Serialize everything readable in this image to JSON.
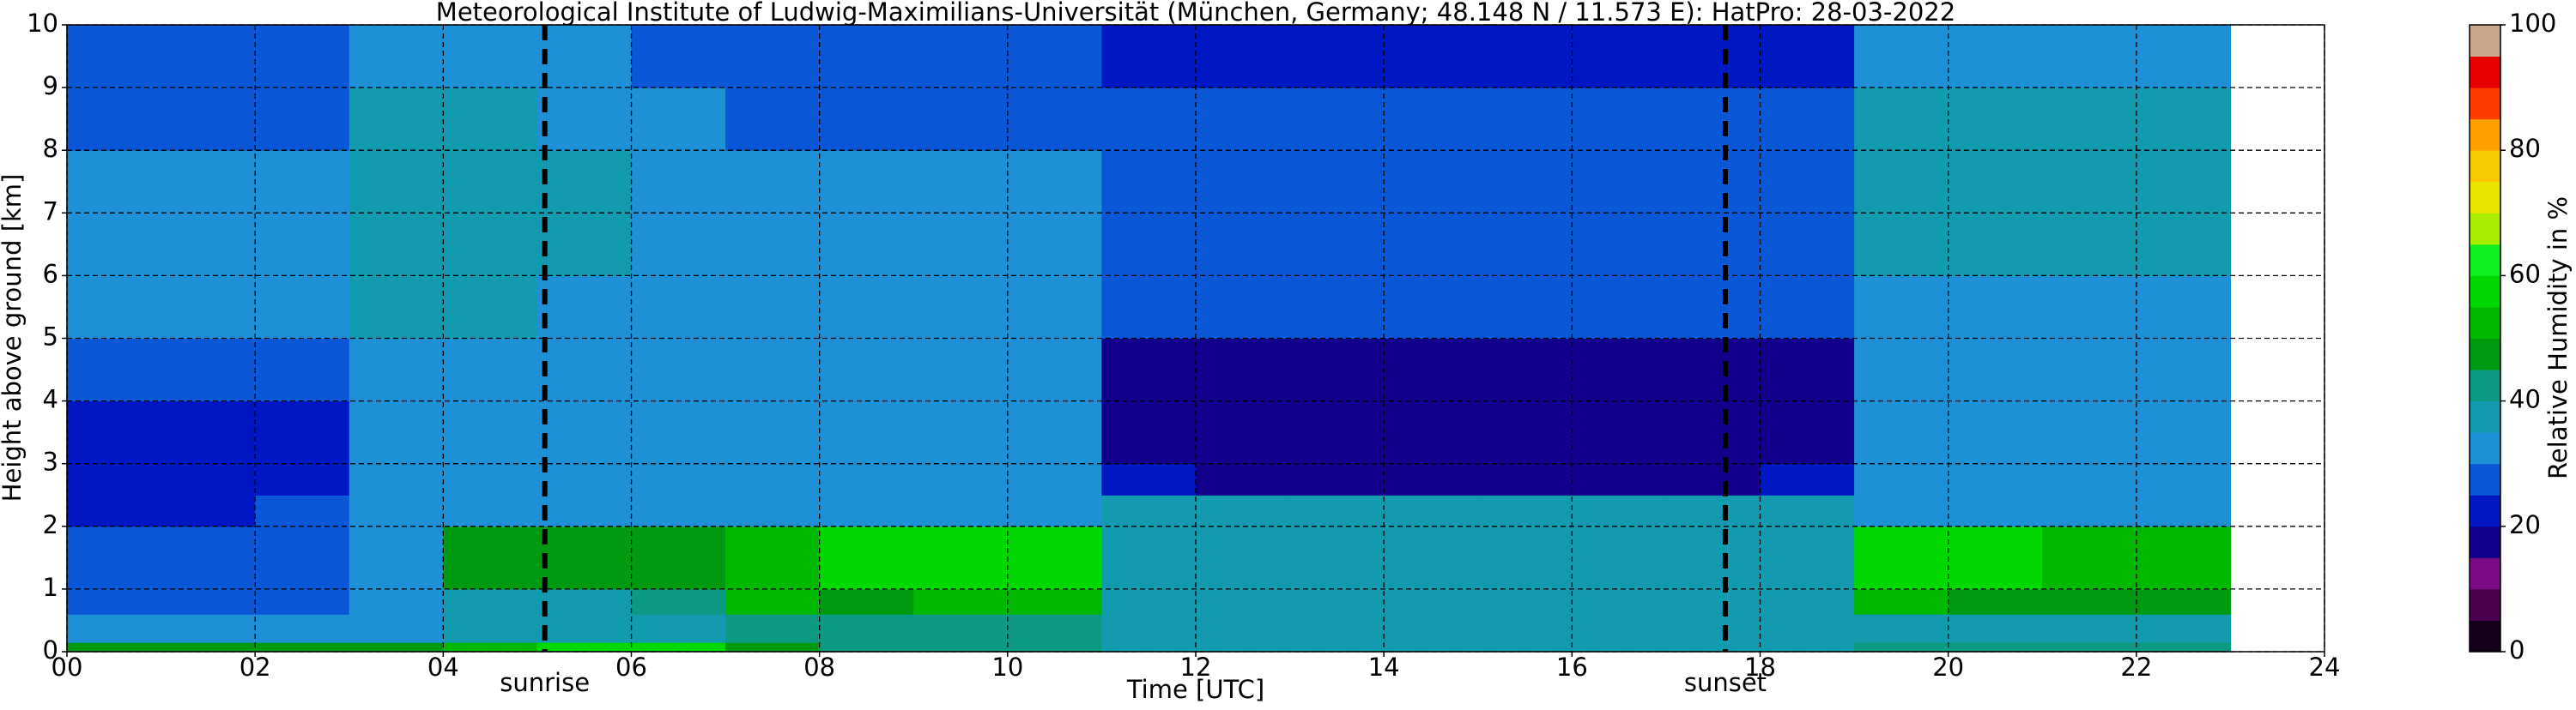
{
  "chart_data": {
    "type": "heatmap",
    "title": "Meteorological Institute of Ludwig-Maximilians-Universität (München, Germany; 48.148 N / 11.573 E):    HatPro: 28-03-2022",
    "x_label": "Time [UTC]",
    "y_label": "Height above ground [km]",
    "colorbar_label": "Relative Humidity in %",
    "xlim": [
      0,
      24
    ],
    "xticks": [
      {
        "value": 0,
        "label": "00"
      },
      {
        "value": 2,
        "label": "02"
      },
      {
        "value": 4,
        "label": "04"
      },
      {
        "value": 6,
        "label": "06"
      },
      {
        "value": 8,
        "label": "08"
      },
      10,
      12,
      14,
      16,
      18,
      20,
      22,
      24
    ],
    "ylim": [
      0,
      10
    ],
    "yticks": [
      0,
      1,
      2,
      3,
      4,
      5,
      6,
      7,
      8,
      9,
      10
    ],
    "grid": true,
    "x_edges": [
      0,
      1,
      2,
      3,
      4,
      5,
      6,
      7,
      8,
      9,
      10,
      11,
      12,
      13,
      14,
      15,
      16,
      17,
      18,
      19,
      20,
      21,
      22,
      23
    ],
    "y_edges": [
      0,
      0.15,
      0.6,
      1,
      2,
      2.5,
      3,
      4,
      5,
      6,
      7,
      8,
      9,
      10
    ],
    "z": [
      [
        45,
        45,
        45,
        48,
        52,
        55,
        55,
        45,
        42,
        42,
        42,
        38,
        38,
        38,
        38,
        38,
        38,
        38,
        38,
        40,
        40,
        40,
        42
      ],
      [
        30,
        30,
        30,
        33,
        35,
        35,
        38,
        40,
        40,
        40,
        40,
        38,
        38,
        38,
        38,
        38,
        38,
        38,
        38,
        38,
        38,
        38,
        38
      ],
      [
        28,
        28,
        28,
        32,
        35,
        35,
        40,
        50,
        48,
        52,
        52,
        38,
        38,
        38,
        38,
        38,
        38,
        38,
        38,
        50,
        45,
        45,
        45
      ],
      [
        27,
        27,
        27,
        33,
        45,
        45,
        45,
        52,
        55,
        55,
        55,
        38,
        38,
        38,
        38,
        38,
        38,
        38,
        38,
        55,
        55,
        52,
        52
      ],
      [
        24,
        24,
        26,
        30,
        32,
        32,
        32,
        33,
        33,
        33,
        33,
        36,
        36,
        36,
        36,
        36,
        36,
        36,
        36,
        32,
        32,
        32,
        32
      ],
      [
        22,
        22,
        24,
        30,
        30,
        30,
        30,
        30,
        30,
        30,
        30,
        20,
        18,
        18,
        18,
        18,
        18,
        18,
        20,
        30,
        30,
        30,
        30
      ],
      [
        21,
        21,
        23,
        30,
        30,
        30,
        30,
        30,
        30,
        30,
        30,
        18,
        18,
        18,
        18,
        18,
        18,
        18,
        18,
        30,
        30,
        30,
        30
      ],
      [
        25,
        25,
        27,
        32,
        32,
        32,
        30,
        30,
        30,
        30,
        30,
        17,
        17,
        17,
        17,
        17,
        17,
        17,
        17,
        32,
        32,
        32,
        32
      ],
      [
        30,
        30,
        30,
        35,
        36,
        34,
        32,
        31,
        30,
        30,
        30,
        25,
        25,
        25,
        25,
        25,
        25,
        25,
        25,
        34,
        34,
        34,
        34
      ],
      [
        30,
        30,
        30,
        37,
        38,
        35,
        32,
        30,
        30,
        30,
        30,
        26,
        26,
        26,
        26,
        26,
        26,
        26,
        26,
        36,
        36,
        36,
        36
      ],
      [
        30,
        30,
        30,
        37,
        38,
        35,
        32,
        30,
        30,
        30,
        30,
        26,
        26,
        26,
        26,
        26,
        26,
        26,
        26,
        37,
        37,
        37,
        37
      ],
      [
        29,
        29,
        29,
        36,
        36,
        34,
        31,
        29,
        29,
        29,
        29,
        25,
        25,
        25,
        25,
        25,
        25,
        25,
        25,
        36,
        36,
        36,
        36
      ],
      [
        28,
        28,
        28,
        33,
        33,
        31,
        29,
        26,
        26,
        27,
        27,
        20,
        20,
        20,
        20,
        20,
        20,
        20,
        20,
        33,
        33,
        33,
        33
      ]
    ],
    "clim": [
      0,
      100
    ],
    "cticks": [
      0,
      20,
      40,
      60,
      80,
      100
    ],
    "levels": [
      0,
      5,
      10,
      15,
      20,
      25,
      30,
      35,
      40,
      45,
      50,
      55,
      60,
      65,
      70,
      75,
      80,
      85,
      90,
      95,
      100
    ],
    "colors": [
      "#14001c",
      "#4a004e",
      "#7a0a86",
      "#12008c",
      "#0018c4",
      "#0a58d8",
      "#1e90d6",
      "#129aae",
      "#0c9a84",
      "#009a10",
      "#00b800",
      "#00d800",
      "#10f020",
      "#a8ec00",
      "#e8e400",
      "#f8c800",
      "#ffa000",
      "#ff3a00",
      "#e80000",
      "#c8a88c"
    ],
    "vlines": [
      {
        "x": 5.08,
        "label": "sunrise"
      },
      {
        "x": 17.63,
        "label": "sunset"
      }
    ]
  }
}
